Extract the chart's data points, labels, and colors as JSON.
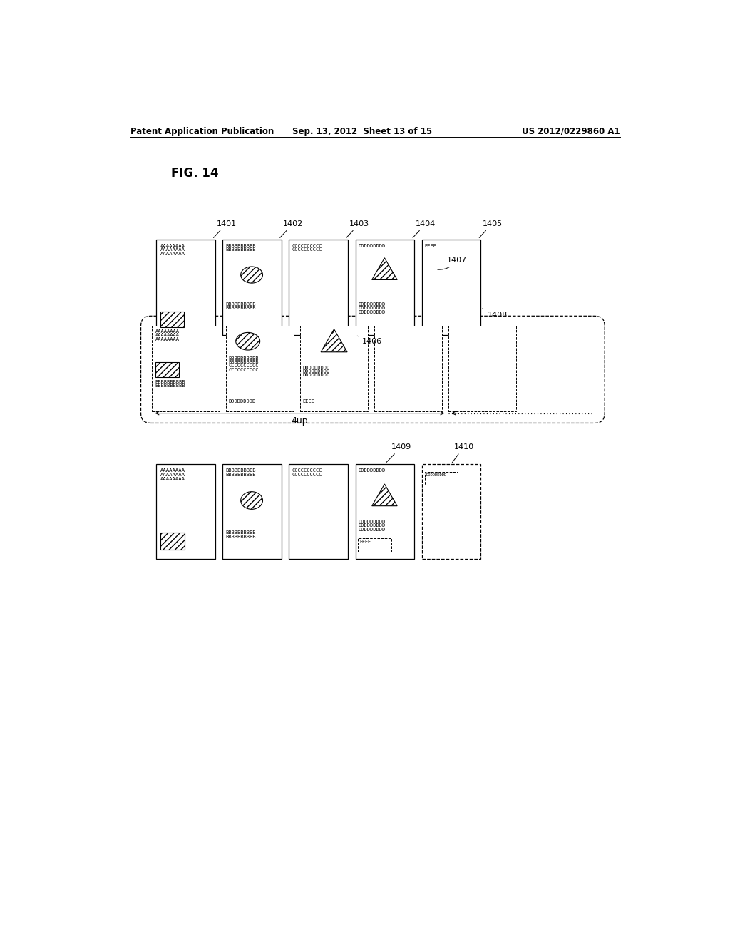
{
  "header_left": "Patent Application Publication",
  "header_mid": "Sep. 13, 2012  Sheet 13 of 15",
  "header_right": "US 2012/0229860 A1",
  "fig_label": "FIG. 14",
  "bg_color": "#ffffff"
}
